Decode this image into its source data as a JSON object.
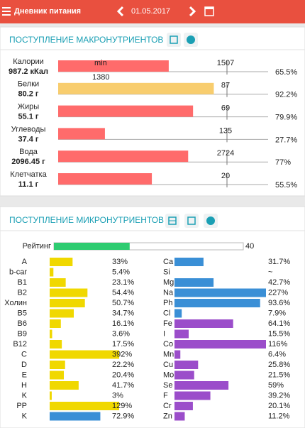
{
  "header": {
    "title": "Дневник питания",
    "date": "01.05.2017"
  },
  "macro": {
    "title": "ПОСТУПЛЕНИЕ МАКРОНУТРИЕНТОВ",
    "rows": [
      {
        "name": "Калории",
        "amount": "987.2 кКал",
        "norm": 1507,
        "min_label": "min",
        "min_value": 1380,
        "percent": 65.5,
        "percent_label": "65.5%",
        "color": "#ff6b6b"
      },
      {
        "name": "Белки",
        "amount": "80.2 г",
        "norm": 87,
        "percent": 92.2,
        "percent_label": "92.2%",
        "color": "#f8cd6e"
      },
      {
        "name": "Жиры",
        "amount": "55.1 г",
        "norm": 69,
        "percent": 79.9,
        "percent_label": "79.9%",
        "color": "#ff6b6b"
      },
      {
        "name": "Углеводы",
        "amount": "37.4 г",
        "norm": 135,
        "percent": 27.7,
        "percent_label": "27.7%",
        "color": "#ff6b6b"
      },
      {
        "name": "Вода",
        "amount": "2096.45 г",
        "norm": 2724,
        "percent": 77,
        "percent_label": "77%",
        "color": "#ff6b6b"
      },
      {
        "name": "Клетчатка",
        "amount": "11.1 г",
        "norm": 20,
        "percent": 55.5,
        "percent_label": "55.5%",
        "color": "#ff6b6b"
      }
    ]
  },
  "micro": {
    "title": "ПОСТУПЛЕНИЕ МИКРОНУТРИЕНТОВ",
    "rating": {
      "label": "Рейтинг",
      "value": 40,
      "color": "#2ecc71"
    },
    "left": [
      {
        "name": "A",
        "value": 33,
        "value_label": "33%",
        "color": "#f0d800"
      },
      {
        "name": "b-car",
        "value": 5.4,
        "value_label": "5.4%",
        "color": "#f0d800"
      },
      {
        "name": "B1",
        "value": 23.1,
        "value_label": "23.1%",
        "color": "#f0d800"
      },
      {
        "name": "B2",
        "value": 54.4,
        "value_label": "54.4%",
        "color": "#f0d800"
      },
      {
        "name": "Холин",
        "value": 50.7,
        "value_label": "50.7%",
        "color": "#f0d800"
      },
      {
        "name": "B5",
        "value": 34.7,
        "value_label": "34.7%",
        "color": "#f0d800"
      },
      {
        "name": "B6",
        "value": 16.1,
        "value_label": "16.1%",
        "color": "#f0d800"
      },
      {
        "name": "B9",
        "value": 3.6,
        "value_label": "3.6%",
        "color": "#f0d800"
      },
      {
        "name": "B12",
        "value": 17.5,
        "value_label": "17.5%",
        "color": "#f0d800"
      },
      {
        "name": "C",
        "value": 392,
        "value_label": "392%",
        "color": "#f0d800"
      },
      {
        "name": "D",
        "value": 22.2,
        "value_label": "22.2%",
        "color": "#f0d800"
      },
      {
        "name": "E",
        "value": 20.4,
        "value_label": "20.4%",
        "color": "#f0d800"
      },
      {
        "name": "H",
        "value": 41.7,
        "value_label": "41.7%",
        "color": "#f0d800"
      },
      {
        "name": "K",
        "value": 3,
        "value_label": "3%",
        "color": "#f0d800"
      },
      {
        "name": "PP",
        "value": 129,
        "value_label": "129%",
        "color": "#f0d800"
      },
      {
        "name": "K",
        "value": 72.9,
        "value_label": "72.9%",
        "color": "#3a8fd6"
      }
    ],
    "right": [
      {
        "name": "Ca",
        "value": 31.7,
        "value_label": "31.7%",
        "color": "#3a8fd6"
      },
      {
        "name": "Si",
        "value": null,
        "value_label": "~",
        "color": "#3a8fd6"
      },
      {
        "name": "Mg",
        "value": 42.7,
        "value_label": "42.7%",
        "color": "#3a8fd6"
      },
      {
        "name": "Na",
        "value": 227,
        "value_label": "227%",
        "color": "#3a8fd6"
      },
      {
        "name": "Ph",
        "value": 93.6,
        "value_label": "93.6%",
        "color": "#3a8fd6"
      },
      {
        "name": "Cl",
        "value": 7.9,
        "value_label": "7.9%",
        "color": "#3a8fd6"
      },
      {
        "name": "Fe",
        "value": 64.1,
        "value_label": "64.1%",
        "color": "#9b4dca"
      },
      {
        "name": "I",
        "value": 15.5,
        "value_label": "15.5%",
        "color": "#9b4dca"
      },
      {
        "name": "Co",
        "value": 116,
        "value_label": "116%",
        "color": "#9b4dca"
      },
      {
        "name": "Mn",
        "value": 6.4,
        "value_label": "6.4%",
        "color": "#9b4dca"
      },
      {
        "name": "Cu",
        "value": 25.8,
        "value_label": "25.8%",
        "color": "#9b4dca"
      },
      {
        "name": "Mo",
        "value": 21.5,
        "value_label": "21.5%",
        "color": "#9b4dca"
      },
      {
        "name": "Se",
        "value": 59,
        "value_label": "59%",
        "color": "#9b4dca"
      },
      {
        "name": "F",
        "value": 39.2,
        "value_label": "39.2%",
        "color": "#9b4dca"
      },
      {
        "name": "Cr",
        "value": 20.1,
        "value_label": "20.1%",
        "color": "#9b4dca"
      },
      {
        "name": "Zn",
        "value": 11.2,
        "value_label": "11.2%",
        "color": "#9b4dca"
      }
    ]
  }
}
